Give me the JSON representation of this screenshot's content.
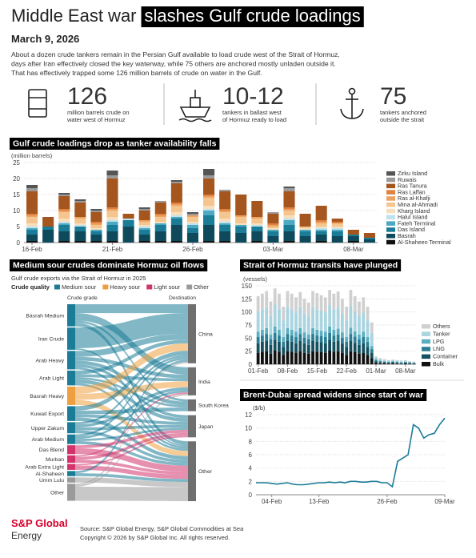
{
  "header": {
    "title": "Middle East war",
    "title_highlight": "slashes Gulf crude loadings",
    "date": "March 9, 2026",
    "paragraph": [
      "About a dozen crude tankers remain in the Persian Gulf available to load crude west of the Strait of Hormuz,",
      "days after Iran effectively closed the key waterway, while 75 others are anchored mostly unladen outside it.",
      "That has effectively trapped some 126 million barrels of crude on water in the Gulf."
    ]
  },
  "stats": [
    {
      "value": 126,
      "text": [
        "million barrels crude on",
        "water west of Hormuz"
      ]
    },
    {
      "value": "10-12",
      "text": [
        "tankers in ballast west",
        "of Hormuz ready to load"
      ]
    },
    {
      "value": 75,
      "text": [
        "tankers anchored",
        "outside the strait"
      ]
    }
  ],
  "chart_data": [
    {
      "type": "stacked_bar",
      "title": "Gulf crude loadings drop as tanker availability falls",
      "ylabel": "(million barrels)",
      "categories": [
        "16-Feb",
        null,
        null,
        null,
        null,
        "21-Feb",
        null,
        null,
        null,
        null,
        "26-Feb",
        null,
        null,
        null,
        null,
        "03-Mar",
        null,
        null,
        null,
        null,
        "08-Mar",
        null
      ],
      "ylim": [
        0,
        25
      ],
      "yticks": [
        0,
        5,
        10,
        15,
        20,
        25
      ],
      "grid": true,
      "series": [
        {
          "name": "Zirku Island",
          "color": "#555555",
          "values": [
            1,
            0,
            0.5,
            0.5,
            0.5,
            1.5,
            0,
            0.5,
            0,
            0.5,
            0.5,
            2,
            0,
            0,
            0,
            0,
            0.5,
            0,
            0,
            0,
            0,
            0
          ]
        },
        {
          "name": "Ruwais",
          "color": "#9a9a9a",
          "values": [
            1,
            0,
            0.5,
            0.5,
            0.5,
            1,
            0,
            0.5,
            0.5,
            0.5,
            0.5,
            1,
            0.5,
            0,
            0,
            0.5,
            1,
            0,
            0,
            0,
            0,
            0
          ]
        },
        {
          "name": "Ras Tanura",
          "color": "#a5561f",
          "values": [
            7,
            3,
            4,
            4.5,
            3,
            9,
            1.5,
            3,
            3.5,
            6,
            0,
            5,
            5.5,
            6.5,
            5,
            3,
            5,
            4,
            4.5,
            1,
            1.5,
            1.5
          ]
        },
        {
          "name": "Ras Laffan",
          "color": "#e0813f",
          "values": [
            0.5,
            0,
            0.5,
            0,
            0.5,
            0.5,
            0,
            0,
            0.5,
            0.5,
            0,
            0.5,
            0.5,
            0,
            0,
            0.5,
            0.5,
            0,
            0.5,
            0.5,
            0,
            0
          ]
        },
        {
          "name": "Ras al-Khafji",
          "color": "#eea25f",
          "values": [
            0.5,
            0,
            0.5,
            0.5,
            0.5,
            0.5,
            0,
            0.5,
            0.5,
            0.5,
            0.5,
            0.5,
            0.5,
            0.5,
            0.5,
            0.5,
            0.5,
            0,
            0.5,
            0,
            0,
            0
          ]
        },
        {
          "name": "Mina al-Ahmadi",
          "color": "#f5c58f",
          "values": [
            2,
            0,
            2,
            1.5,
            1,
            2,
            0,
            1,
            1.5,
            2,
            1.5,
            2.5,
            2,
            2,
            1.5,
            0.5,
            1.5,
            0.5,
            1,
            1,
            0,
            0
          ]
        },
        {
          "name": "Kharg Island",
          "color": "#f7dfbd",
          "values": [
            1,
            0,
            1,
            0.5,
            0.5,
            1,
            0,
            0.5,
            0.5,
            1,
            0.5,
            1,
            1,
            0.5,
            0.5,
            0.5,
            1,
            0.5,
            0.5,
            0.5,
            0,
            0
          ]
        },
        {
          "name": "Halul Island",
          "color": "#bfe2ee",
          "values": [
            0.5,
            0,
            0.5,
            0.5,
            0,
            0.5,
            0.5,
            0.5,
            0,
            0.5,
            0.5,
            0.5,
            0.5,
            0,
            0.5,
            0,
            0.5,
            0,
            0.5,
            0.5,
            0,
            0
          ]
        },
        {
          "name": "Fateh Terminal",
          "color": "#4ba9c2",
          "values": [
            0.5,
            0,
            0.5,
            0,
            0.5,
            1,
            0,
            0.5,
            0.5,
            0.5,
            1,
            1.5,
            0.5,
            0.5,
            0,
            0.5,
            1.5,
            0.5,
            0.5,
            0.5,
            0,
            0
          ]
        },
        {
          "name": "Das Island",
          "color": "#1b7c97",
          "values": [
            1.5,
            1,
            2,
            1.5,
            1,
            2,
            2,
            1.5,
            2,
            2,
            1.5,
            3,
            2,
            2,
            1.5,
            1.5,
            2,
            1.5,
            1,
            1.5,
            0.5,
            0.5
          ]
        },
        {
          "name": "Basrah",
          "color": "#0e4a5c",
          "values": [
            2,
            4,
            3,
            3,
            2,
            3,
            5,
            2,
            3,
            5,
            3,
            5,
            3,
            3,
            3,
            2,
            3,
            2,
            2,
            2,
            1.5,
            1
          ]
        },
        {
          "name": "Al-Shaheen Terminal",
          "color": "#111111",
          "values": [
            0.5,
            0,
            0.5,
            0.5,
            0.5,
            0.5,
            0,
            0.5,
            0.5,
            0.5,
            0,
            0.5,
            0.5,
            0,
            0.5,
            0,
            0.5,
            0,
            0.5,
            0,
            0.5,
            0
          ]
        }
      ]
    },
    {
      "type": "sankey",
      "title": "Medium sour crudes dominate Hormuz oil flows",
      "subtitle": "Gulf crude exports via the Strait of Hormuz in 2025",
      "legend_title": "Crude quality",
      "left_header": "Crude grade",
      "right_header": "Destination",
      "qualities": [
        {
          "name": "Medium sour",
          "color": "#1b7c97"
        },
        {
          "name": "Heavy sour",
          "color": "#eea040"
        },
        {
          "name": "Light sour",
          "color": "#d2336b"
        },
        {
          "name": "Other",
          "color": "#9a9a9a"
        }
      ],
      "sources": [
        {
          "label": "Basrah Medium",
          "quality": 0
        },
        {
          "label": "Iran Crude",
          "quality": 0
        },
        {
          "label": "Arab Heavy",
          "quality": 0
        },
        {
          "label": "Arab Light",
          "quality": 0
        },
        {
          "label": "Basrah Heavy",
          "quality": 1
        },
        {
          "label": "Kuwait Export",
          "quality": 0
        },
        {
          "label": "Upper Zakum",
          "quality": 0
        },
        {
          "label": "Arab Medium",
          "quality": 0
        },
        {
          "label": "Das Blend",
          "quality": 2
        },
        {
          "label": "Murban",
          "quality": 2
        },
        {
          "label": "Arab Extra Light",
          "quality": 2
        },
        {
          "label": "Al-Shaheen",
          "quality": 0
        },
        {
          "label": "Umm Lulu",
          "quality": 3
        },
        {
          "label": "Other",
          "quality": 3
        }
      ],
      "targets": [
        "China",
        "India",
        "South Korea",
        "Japan",
        "Other"
      ],
      "flows": [
        {
          "source": 0,
          "target": 0,
          "value": 12
        },
        {
          "source": 0,
          "target": 1,
          "value": 10
        },
        {
          "source": 0,
          "target": 2,
          "value": 3
        },
        {
          "source": 0,
          "target": 4,
          "value": 5
        },
        {
          "source": 1,
          "target": 0,
          "value": 28
        },
        {
          "source": 1,
          "target": 4,
          "value": 2
        },
        {
          "source": 2,
          "target": 0,
          "value": 8
        },
        {
          "source": 2,
          "target": 1,
          "value": 5
        },
        {
          "source": 2,
          "target": 2,
          "value": 5
        },
        {
          "source": 2,
          "target": 3,
          "value": 4
        },
        {
          "source": 2,
          "target": 4,
          "value": 3
        },
        {
          "source": 3,
          "target": 0,
          "value": 5
        },
        {
          "source": 3,
          "target": 1,
          "value": 4
        },
        {
          "source": 3,
          "target": 2,
          "value": 3
        },
        {
          "source": 3,
          "target": 3,
          "value": 5
        },
        {
          "source": 3,
          "target": 4,
          "value": 3
        },
        {
          "source": 4,
          "target": 0,
          "value": 10
        },
        {
          "source": 4,
          "target": 1,
          "value": 8
        },
        {
          "source": 4,
          "target": 4,
          "value": 7
        },
        {
          "source": 5,
          "target": 0,
          "value": 6
        },
        {
          "source": 5,
          "target": 2,
          "value": 5
        },
        {
          "source": 5,
          "target": 3,
          "value": 4
        },
        {
          "source": 5,
          "target": 4,
          "value": 5
        },
        {
          "source": 6,
          "target": 0,
          "value": 3
        },
        {
          "source": 6,
          "target": 1,
          "value": 4
        },
        {
          "source": 6,
          "target": 3,
          "value": 4
        },
        {
          "source": 6,
          "target": 4,
          "value": 4
        },
        {
          "source": 7,
          "target": 0,
          "value": 3
        },
        {
          "source": 7,
          "target": 1,
          "value": 3
        },
        {
          "source": 7,
          "target": 3,
          "value": 3
        },
        {
          "source": 7,
          "target": 4,
          "value": 4
        },
        {
          "source": 8,
          "target": 3,
          "value": 4
        },
        {
          "source": 8,
          "target": 4,
          "value": 8
        },
        {
          "source": 9,
          "target": 1,
          "value": 2
        },
        {
          "source": 9,
          "target": 3,
          "value": 4
        },
        {
          "source": 9,
          "target": 4,
          "value": 4
        },
        {
          "source": 10,
          "target": 3,
          "value": 2
        },
        {
          "source": 10,
          "target": 4,
          "value": 6
        },
        {
          "source": 11,
          "target": 0,
          "value": 3
        },
        {
          "source": 11,
          "target": 4,
          "value": 4
        },
        {
          "source": 12,
          "target": 4,
          "value": 7
        },
        {
          "source": 13,
          "target": 0,
          "value": 2
        },
        {
          "source": 13,
          "target": 1,
          "value": 2
        },
        {
          "source": 13,
          "target": 4,
          "value": 19
        }
      ]
    },
    {
      "type": "stacked_bar",
      "title": "Strait of Hormuz transits have plunged",
      "ylabel": "(vessels)",
      "categories": [
        "01-Feb",
        null,
        null,
        null,
        null,
        null,
        null,
        "08-Feb",
        null,
        null,
        null,
        null,
        null,
        null,
        "15-Feb",
        null,
        null,
        null,
        null,
        null,
        null,
        "22-Feb",
        null,
        null,
        null,
        null,
        null,
        null,
        "01-Mar",
        null,
        null,
        null,
        null,
        null,
        null,
        "08-Mar",
        null,
        null
      ],
      "ylim": [
        0,
        150
      ],
      "yticks": [
        0,
        25,
        50,
        75,
        100,
        125,
        150
      ],
      "grid": true,
      "series": [
        {
          "name": "Others",
          "color": "#d0d0d0",
          "values": [
            30,
            30,
            31,
            28,
            31,
            30,
            26,
            31,
            30,
            29,
            29,
            28,
            27,
            31,
            31,
            30,
            29,
            29,
            30,
            31,
            28,
            26,
            31,
            30,
            28,
            29,
            26,
            20,
            2,
            2,
            2,
            1,
            1,
            1,
            1,
            1,
            1,
            1
          ]
        },
        {
          "name": "Tanker",
          "color": "#a9d4e0",
          "values": [
            38,
            39,
            40,
            35,
            42,
            39,
            32,
            40,
            39,
            37,
            40,
            36,
            34,
            40,
            39,
            38,
            37,
            41,
            39,
            40,
            36,
            32,
            41,
            37,
            35,
            37,
            32,
            25,
            3,
            3,
            2,
            2,
            2,
            2,
            2,
            2,
            1,
            1
          ]
        },
        {
          "name": "LPG",
          "color": "#5aaec2",
          "values": [
            10,
            11,
            11,
            9,
            12,
            11,
            9,
            11,
            11,
            10,
            11,
            10,
            9,
            11,
            11,
            10,
            10,
            12,
            11,
            11,
            10,
            9,
            12,
            10,
            9,
            10,
            9,
            6,
            2,
            1,
            1,
            1,
            1,
            1,
            1,
            1,
            1,
            1
          ]
        },
        {
          "name": "LNG",
          "color": "#2a7f95",
          "values": [
            12,
            12,
            13,
            11,
            13,
            12,
            10,
            13,
            12,
            12,
            13,
            11,
            11,
            13,
            12,
            12,
            12,
            13,
            12,
            12,
            11,
            10,
            13,
            12,
            11,
            12,
            10,
            7,
            2,
            2,
            1,
            1,
            1,
            1,
            1,
            1,
            1,
            0
          ]
        },
        {
          "name": "Container",
          "color": "#15505f",
          "values": [
            18,
            19,
            20,
            17,
            21,
            19,
            15,
            20,
            19,
            18,
            20,
            18,
            17,
            20,
            19,
            19,
            18,
            21,
            19,
            20,
            18,
            15,
            20,
            18,
            17,
            18,
            15,
            10,
            3,
            2,
            2,
            2,
            2,
            2,
            1,
            1,
            1,
            1
          ]
        },
        {
          "name": "Bulk",
          "color": "#111111",
          "values": [
            22,
            24,
            25,
            20,
            26,
            24,
            18,
            25,
            24,
            22,
            25,
            22,
            20,
            25,
            24,
            23,
            22,
            26,
            24,
            25,
            22,
            18,
            25,
            23,
            20,
            22,
            18,
            12,
            3,
            2,
            2,
            1,
            2,
            1,
            1,
            2,
            1,
            1
          ]
        }
      ]
    },
    {
      "type": "line",
      "title": "Brent-Dubai spread widens since start of war",
      "ylabel": "($/b)",
      "color": "#1b7c97",
      "categories": [
        null,
        null,
        null,
        "04-Feb",
        null,
        null,
        null,
        null,
        null,
        null,
        null,
        null,
        "13-Feb",
        null,
        null,
        null,
        null,
        null,
        null,
        null,
        null,
        null,
        null,
        null,
        null,
        "26-Feb",
        null,
        null,
        null,
        null,
        null,
        null,
        null,
        null,
        null,
        null,
        "09-Mar"
      ],
      "values": [
        1.8,
        1.8,
        1.8,
        1.7,
        1.6,
        1.7,
        1.8,
        1.6,
        1.5,
        1.5,
        1.6,
        1.7,
        1.8,
        1.8,
        1.9,
        1.8,
        1.9,
        1.8,
        2.0,
        2.0,
        1.9,
        1.9,
        2.0,
        2.0,
        1.8,
        1.8,
        1.2,
        5.0,
        5.5,
        6.0,
        10.5,
        10.0,
        8.5,
        9.0,
        9.2,
        10.5,
        11.5
      ],
      "ylim": [
        0,
        12
      ],
      "yticks": [
        0,
        2,
        4,
        6,
        8,
        10,
        12
      ],
      "grid": true
    }
  ],
  "footer": {
    "brand": "S&P Global",
    "brand_sub": "Energy",
    "source": [
      "Source: S&P Global Energy, S&P Global Commodities at Sea",
      "Copyright © 2026 by S&P Global Inc. All rights reserved."
    ]
  }
}
